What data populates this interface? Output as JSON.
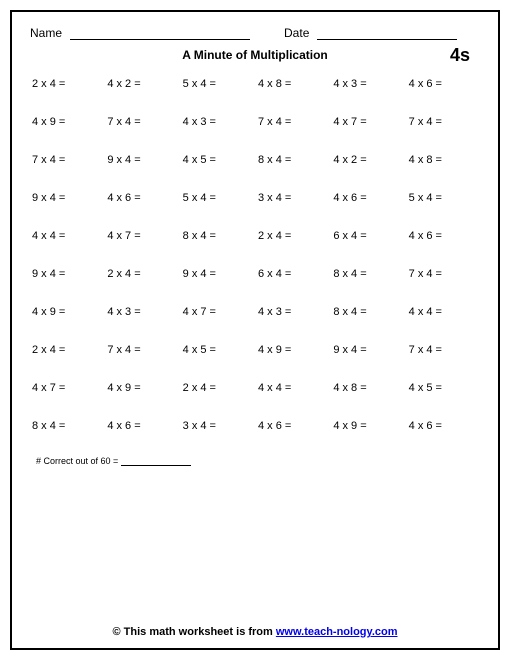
{
  "header": {
    "name_label": "Name",
    "date_label": "Date"
  },
  "title": "A Minute of Multiplication",
  "factor_label": "4s",
  "problems": [
    [
      "2 x 4 =",
      "4 x 2 =",
      "5 x 4 =",
      "4 x 8 =",
      "4 x 3 =",
      "4 x 6 ="
    ],
    [
      "4 x 9 =",
      "7 x 4 =",
      "4 x 3 =",
      "7 x 4 =",
      "4 x 7 =",
      "7 x 4 ="
    ],
    [
      "7 x 4 =",
      "9 x 4 =",
      "4 x 5 =",
      "8 x 4 =",
      "4 x 2 =",
      "4 x 8 ="
    ],
    [
      "9 x 4 =",
      "4 x 6 =",
      "5 x 4 =",
      "3 x 4 =",
      "4 x 6 =",
      "5 x 4 ="
    ],
    [
      "4 x 4 =",
      "4 x 7 =",
      "8 x 4 =",
      "2 x 4 =",
      "6 x 4 =",
      "4 x 6 ="
    ],
    [
      "9 x 4 =",
      "2 x 4 =",
      "9 x 4 =",
      "6 x 4 =",
      "8 x 4 =",
      "7 x 4 ="
    ],
    [
      "4 x 9 =",
      "4 x 3 =",
      "4 x 7 =",
      "4 x 3 =",
      "8 x 4 =",
      "4 x 4 ="
    ],
    [
      "2 x 4 =",
      "7 x 4 =",
      "4 x 5 =",
      "4 x 9 =",
      "9 x 4 =",
      "7 x 4 ="
    ],
    [
      "4 x 7 =",
      "4 x 9 =",
      "2 x 4 =",
      "4 x 4 =",
      "4 x 8 =",
      "4 x 5 ="
    ],
    [
      "8 x 4 =",
      "4 x 6 =",
      "3 x 4 =",
      "4 x 6 =",
      "4 x 9 =",
      "4 x 6 ="
    ]
  ],
  "score_label": "# Correct out of 60 =",
  "footer": {
    "prefix": "© This math worksheet is from ",
    "link_text": "www.teach-nology.com"
  }
}
